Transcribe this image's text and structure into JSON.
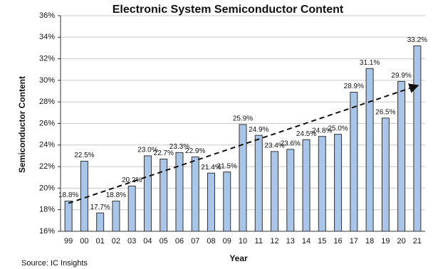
{
  "chart_data": {
    "type": "bar",
    "title": "Electronic System Semiconductor Content",
    "x_label": "Year",
    "y_label": "Semiconductor Content",
    "source": "Source: IC Insights",
    "categories": [
      "99",
      "00",
      "01",
      "02",
      "03",
      "04",
      "05",
      "06",
      "07",
      "08",
      "09",
      "10",
      "11",
      "12",
      "13",
      "14",
      "15",
      "16",
      "17",
      "18",
      "19",
      "20",
      "21"
    ],
    "values": [
      18.8,
      22.5,
      17.7,
      18.8,
      20.2,
      23.0,
      22.7,
      23.3,
      22.9,
      21.4,
      21.5,
      25.9,
      24.9,
      23.4,
      23.6,
      24.5,
      24.8,
      25.0,
      28.9,
      31.1,
      26.5,
      29.9,
      33.2
    ],
    "value_labels": [
      "18.8%",
      "22.5%",
      "17.7%",
      "18.8%",
      "20.2%",
      "23.0%",
      "22.7%",
      "23.3%",
      "22.9%",
      "21.4%",
      "21.5%",
      "25.9%",
      "24.9%",
      "23.4%",
      "23.6%",
      "24.5%",
      "24.8%",
      "25.0%",
      "28.9%",
      "31.1%",
      "26.5%",
      "29.9%",
      "33.2%"
    ],
    "color": "#a9c5e8",
    "ylim": [
      16,
      36
    ],
    "yticks": [
      {
        "value": 16,
        "label": "16%"
      },
      {
        "value": 18,
        "label": "18%"
      },
      {
        "value": 20,
        "label": "20%"
      },
      {
        "value": 22,
        "label": "22%"
      },
      {
        "value": 24,
        "label": "24%"
      },
      {
        "value": 26,
        "label": "26%"
      },
      {
        "value": 28,
        "label": "28%"
      },
      {
        "value": 30,
        "label": "30%"
      },
      {
        "value": 32,
        "label": "32%"
      },
      {
        "value": 34,
        "label": "34%"
      },
      {
        "value": 36,
        "label": "36%"
      }
    ],
    "grid": true,
    "trendline": {
      "values": [
        18.6,
        29.5
      ]
    }
  }
}
